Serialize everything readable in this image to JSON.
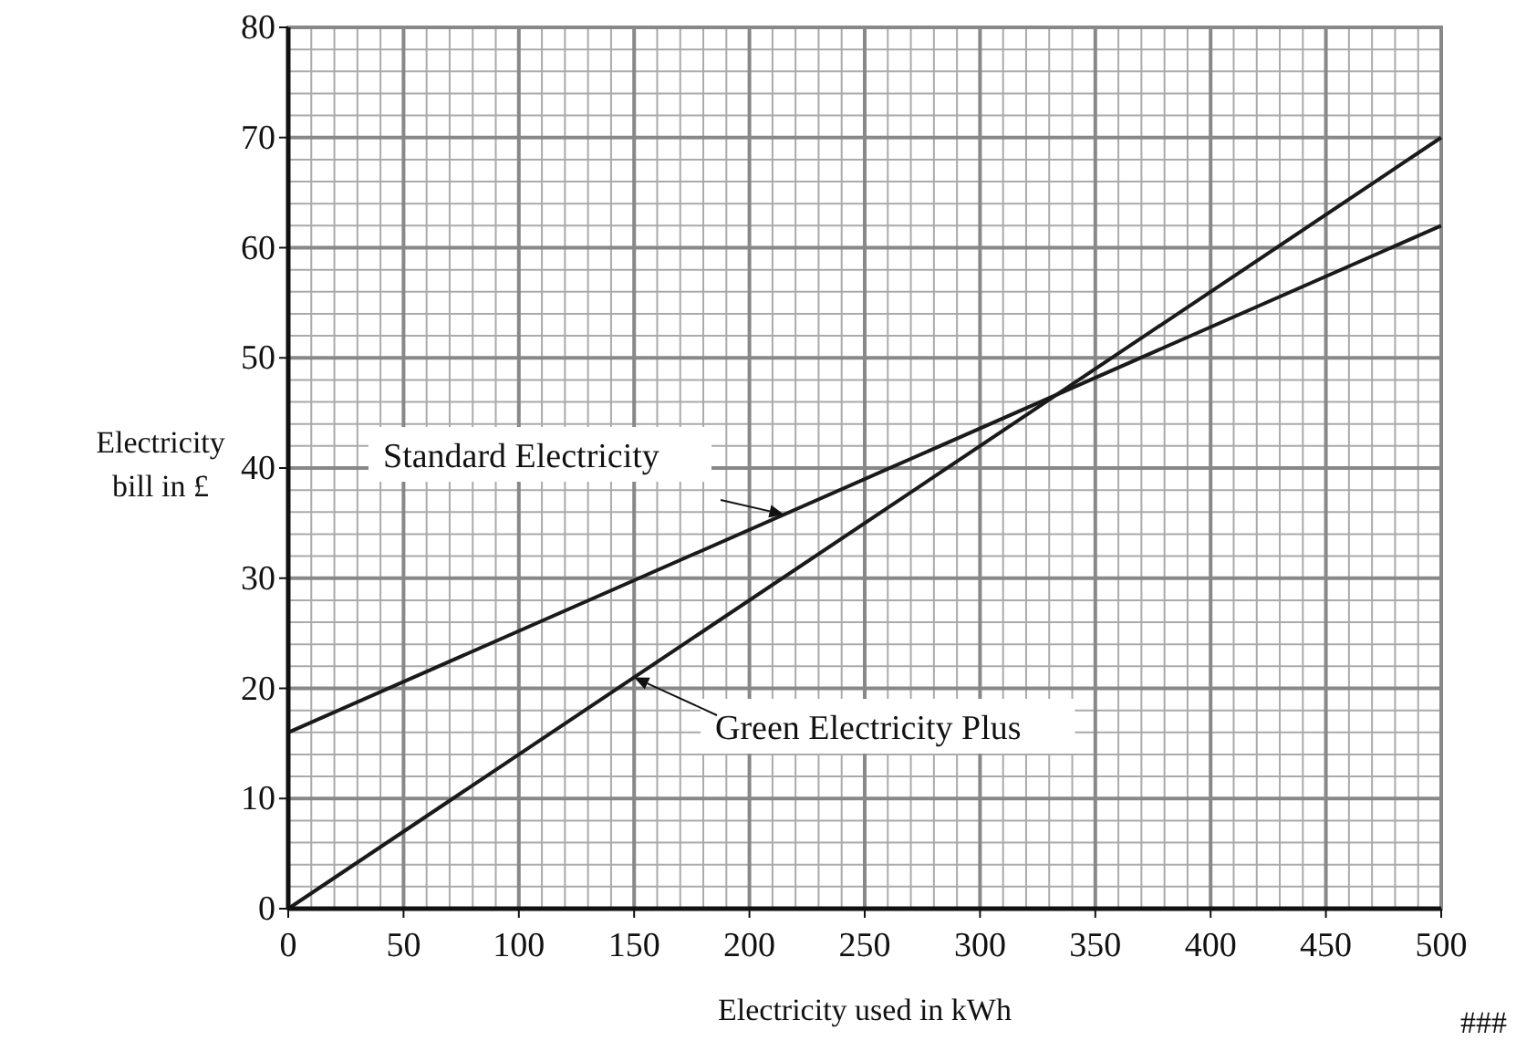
{
  "chart_data": {
    "type": "line",
    "xlabel": "Electricity used in kWh",
    "ylabel": "Electricity bill in £",
    "x": [
      0,
      500
    ],
    "series": [
      {
        "name": "Standard Electricity",
        "color": "#1a1a1a",
        "values": [
          16,
          62
        ]
      },
      {
        "name": "Green Electricity Plus",
        "color": "#1a1a1a",
        "values": [
          0,
          70
        ]
      }
    ],
    "xlim": [
      0,
      500
    ],
    "xticks": [
      0,
      50,
      100,
      150,
      200,
      250,
      300,
      350,
      400,
      450,
      500
    ],
    "ylim": [
      0,
      80
    ],
    "yticks": [
      0,
      10,
      20,
      30,
      40,
      50,
      60,
      70,
      80
    ],
    "grid": true,
    "marker": "none",
    "line_style": "solid",
    "annotations": [
      "###"
    ]
  }
}
